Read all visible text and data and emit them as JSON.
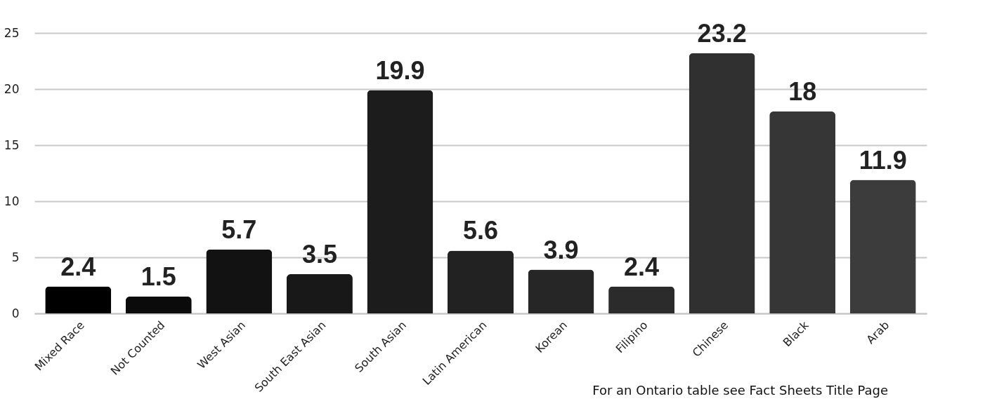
{
  "chart_data": {
    "type": "bar",
    "categories": [
      "Mixed Race",
      "Not Counted",
      "West Asian",
      "South East Asian",
      "South Asian",
      "Latin American",
      "Korean",
      "Filipino",
      "Chinese",
      "Black",
      "Arab"
    ],
    "values": [
      2.4,
      1.5,
      5.7,
      3.5,
      19.9,
      5.6,
      3.9,
      2.4,
      23.2,
      18,
      11.9
    ],
    "colors": [
      "#000000",
      "#0b0b0b",
      "#121212",
      "#181818",
      "#1c1c1c",
      "#222222",
      "#262626",
      "#2b2b2b",
      "#303030",
      "#363636",
      "#3c3c3c"
    ],
    "ylim": [
      0,
      25
    ],
    "yticks": [
      0,
      5,
      10,
      15,
      20,
      25
    ],
    "grid": "y",
    "data_labels": true,
    "annotations": [
      "For an Ontario table see Fact Sheets Title Page"
    ]
  }
}
